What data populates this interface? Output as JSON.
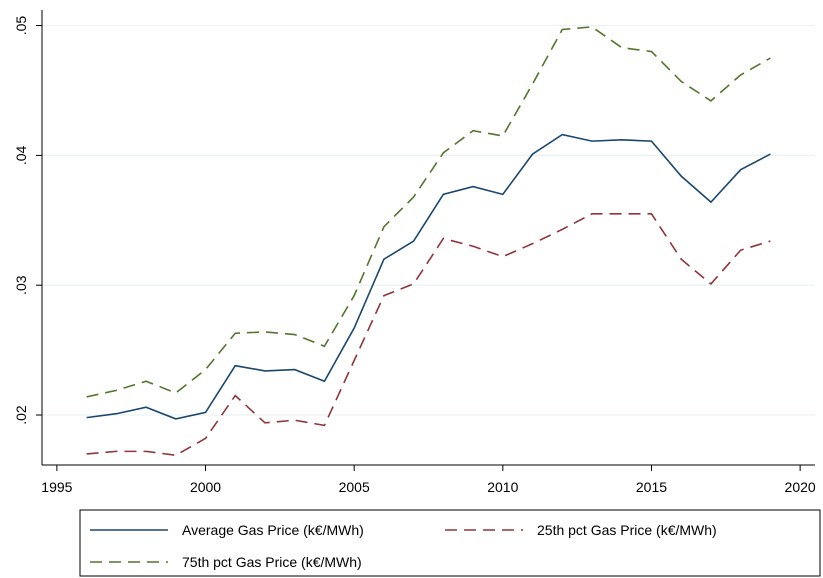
{
  "chart_data": {
    "type": "line",
    "x": [
      1996,
      1997,
      1998,
      1999,
      2000,
      2001,
      2002,
      2003,
      2004,
      2005,
      2006,
      2007,
      2008,
      2009,
      2010,
      2011,
      2012,
      2013,
      2014,
      2015,
      2016,
      2017,
      2018,
      2019
    ],
    "series": [
      {
        "name": "Average Gas Price (k€/MWh)",
        "color": "#1a476f",
        "dash": "solid",
        "values": [
          0.0198,
          0.0201,
          0.0206,
          0.0197,
          0.0202,
          0.0238,
          0.0234,
          0.0235,
          0.0226,
          0.0267,
          0.032,
          0.0334,
          0.037,
          0.0376,
          0.037,
          0.0401,
          0.0416,
          0.0411,
          0.0412,
          0.0411,
          0.0384,
          0.0364,
          0.0389,
          0.0401
        ]
      },
      {
        "name": "25th pct Gas Price (k€/MWh)",
        "color": "#90353b",
        "dash": "dashed",
        "values": [
          0.017,
          0.0172,
          0.0172,
          0.0169,
          0.0182,
          0.0215,
          0.0194,
          0.0196,
          0.0192,
          0.0242,
          0.0292,
          0.0301,
          0.0336,
          0.033,
          0.0322,
          0.0332,
          0.0343,
          0.0355,
          0.0355,
          0.0355,
          0.032,
          0.0301,
          0.0327,
          0.0334
        ]
      },
      {
        "name": "75th pct Gas Price (k€/MWh)",
        "color": "#55752f",
        "dash": "dashed",
        "values": [
          0.0214,
          0.0219,
          0.0226,
          0.0217,
          0.0235,
          0.0263,
          0.0264,
          0.0262,
          0.0253,
          0.0292,
          0.0345,
          0.0368,
          0.0402,
          0.0419,
          0.0415,
          0.0455,
          0.0497,
          0.0499,
          0.0483,
          0.048,
          0.0457,
          0.0442,
          0.0462,
          0.0475
        ]
      }
    ],
    "xlim": [
      1994.5,
      2020.5
    ],
    "xticks": [
      1995,
      2000,
      2005,
      2010,
      2015,
      2020
    ],
    "ylim": [
      0.01615,
      0.0512
    ],
    "yticks": [
      {
        "value": 0.02,
        "label": ".02"
      },
      {
        "value": 0.03,
        "label": ".03"
      },
      {
        "value": 0.04,
        "label": ".04"
      },
      {
        "value": 0.05,
        "label": ".05"
      }
    ],
    "grid": true,
    "legend": "bottom"
  }
}
